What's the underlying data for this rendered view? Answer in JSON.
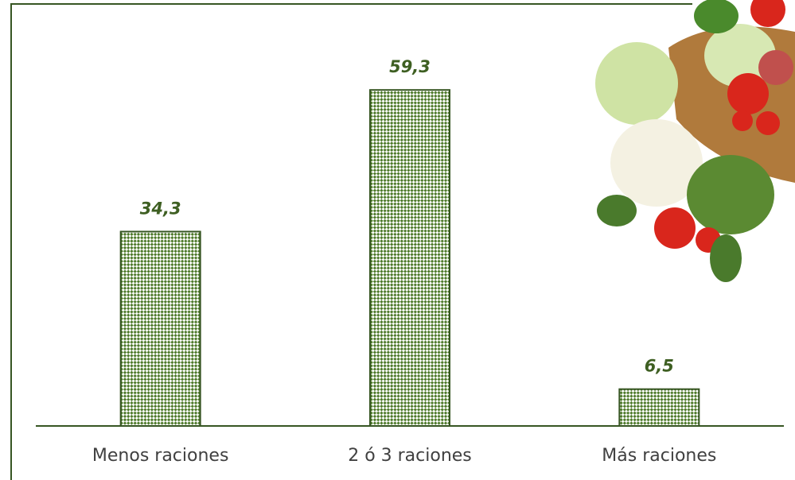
{
  "chart_data": {
    "type": "bar",
    "categories": [
      "Menos raciones",
      "2 ó 3 raciones",
      "Más raciones"
    ],
    "values": [
      34.3,
      59.3,
      6.5
    ],
    "value_labels": [
      "34,3",
      "59,3",
      "6,5"
    ],
    "color": "#4e7a2a"
  }
}
